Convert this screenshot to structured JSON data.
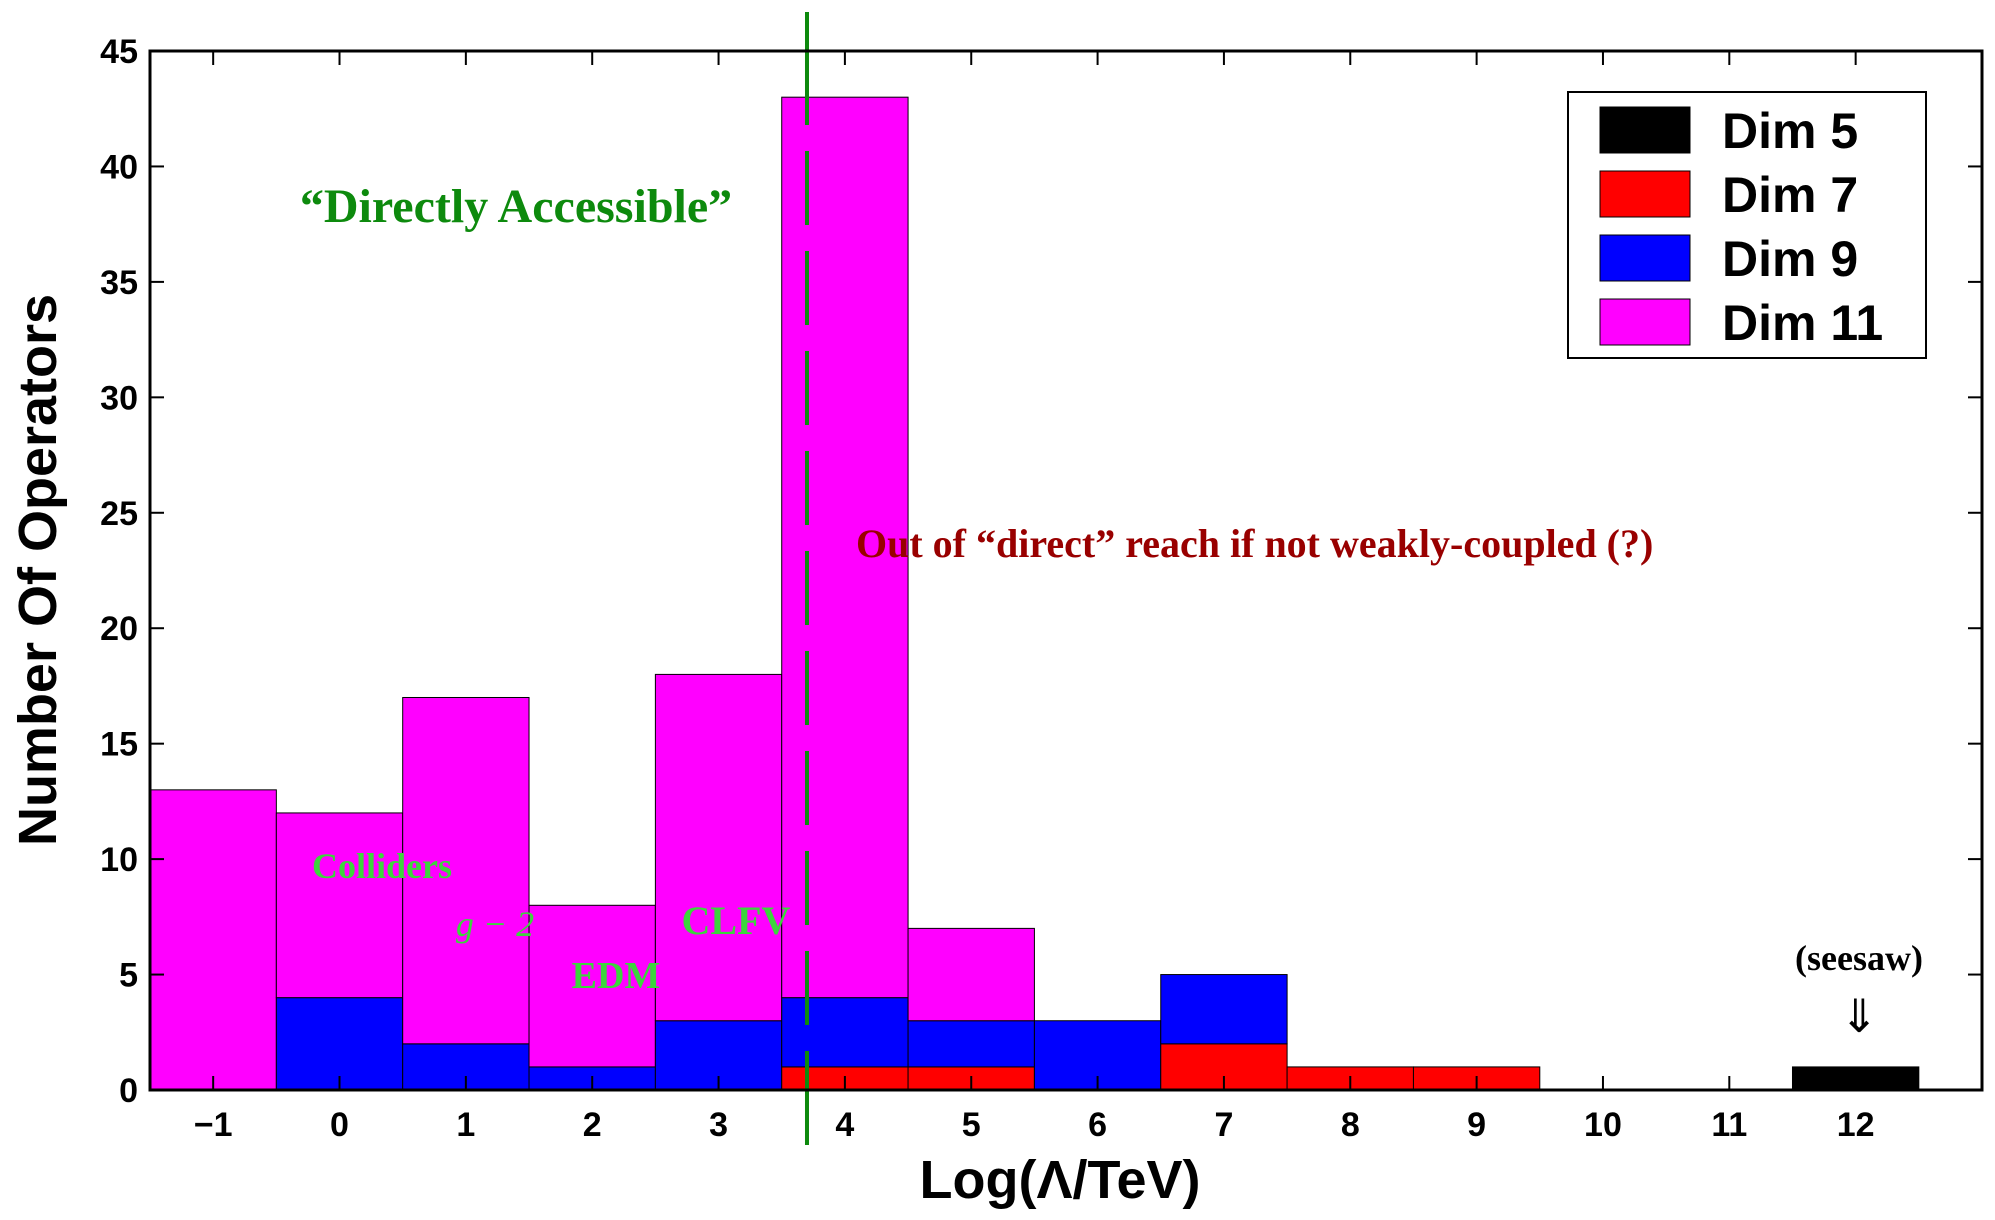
{
  "chart_data": {
    "type": "bar",
    "stacked": true,
    "title": "",
    "xlabel": "Log(Λ/TeV)",
    "ylabel": "Number Of Operators",
    "xlim": [
      -1.5,
      13
    ],
    "ylim": [
      0,
      45
    ],
    "x": [
      -1,
      0,
      1,
      2,
      3,
      4,
      5,
      6,
      7,
      8,
      9,
      10,
      11,
      12
    ],
    "x_tick_labels": [
      "−1",
      "0",
      "1",
      "2",
      "3",
      "4",
      "5",
      "6",
      "7",
      "8",
      "9",
      "10",
      "11",
      "12"
    ],
    "y_ticks": [
      0,
      5,
      10,
      15,
      20,
      25,
      30,
      35,
      40,
      45
    ],
    "grid": false,
    "legend_position": "top-right",
    "series": [
      {
        "name": "Dim 5",
        "color": "#000000",
        "values": [
          0,
          0,
          0,
          0,
          0,
          0,
          0,
          0,
          0,
          0,
          0,
          0,
          0,
          1
        ]
      },
      {
        "name": "Dim 7",
        "color": "#ff0000",
        "values": [
          0,
          0,
          0,
          0,
          0,
          1,
          1,
          0,
          2,
          1,
          1,
          0,
          0,
          0
        ]
      },
      {
        "name": "Dim 9",
        "color": "#0000ff",
        "values": [
          0,
          4,
          2,
          1,
          3,
          3,
          2,
          3,
          3,
          0,
          0,
          0,
          0,
          0
        ]
      },
      {
        "name": "Dim 11",
        "color": "#ff00ff",
        "values": [
          13,
          8,
          15,
          7,
          15,
          39,
          4,
          0,
          0,
          0,
          0,
          0,
          0,
          0
        ]
      }
    ],
    "vertical_line": {
      "x": 3.7,
      "color": "#0d8a0d"
    },
    "annotations": {
      "directly_accessible": "“Directly Accessible”",
      "out_of_reach": "Out of “direct” reach if not weakly-coupled (?)",
      "colliders": "Colliders",
      "g_minus_2": "g − 2",
      "clfv": "CLFV",
      "edm": "EDM",
      "seesaw": "(seesaw)",
      "seesaw_arrow": "⇓"
    },
    "colors": {
      "annotation_green": "#0d8a0d",
      "annotation_light_green": "#3dd43d",
      "annotation_red": "#990000"
    }
  }
}
